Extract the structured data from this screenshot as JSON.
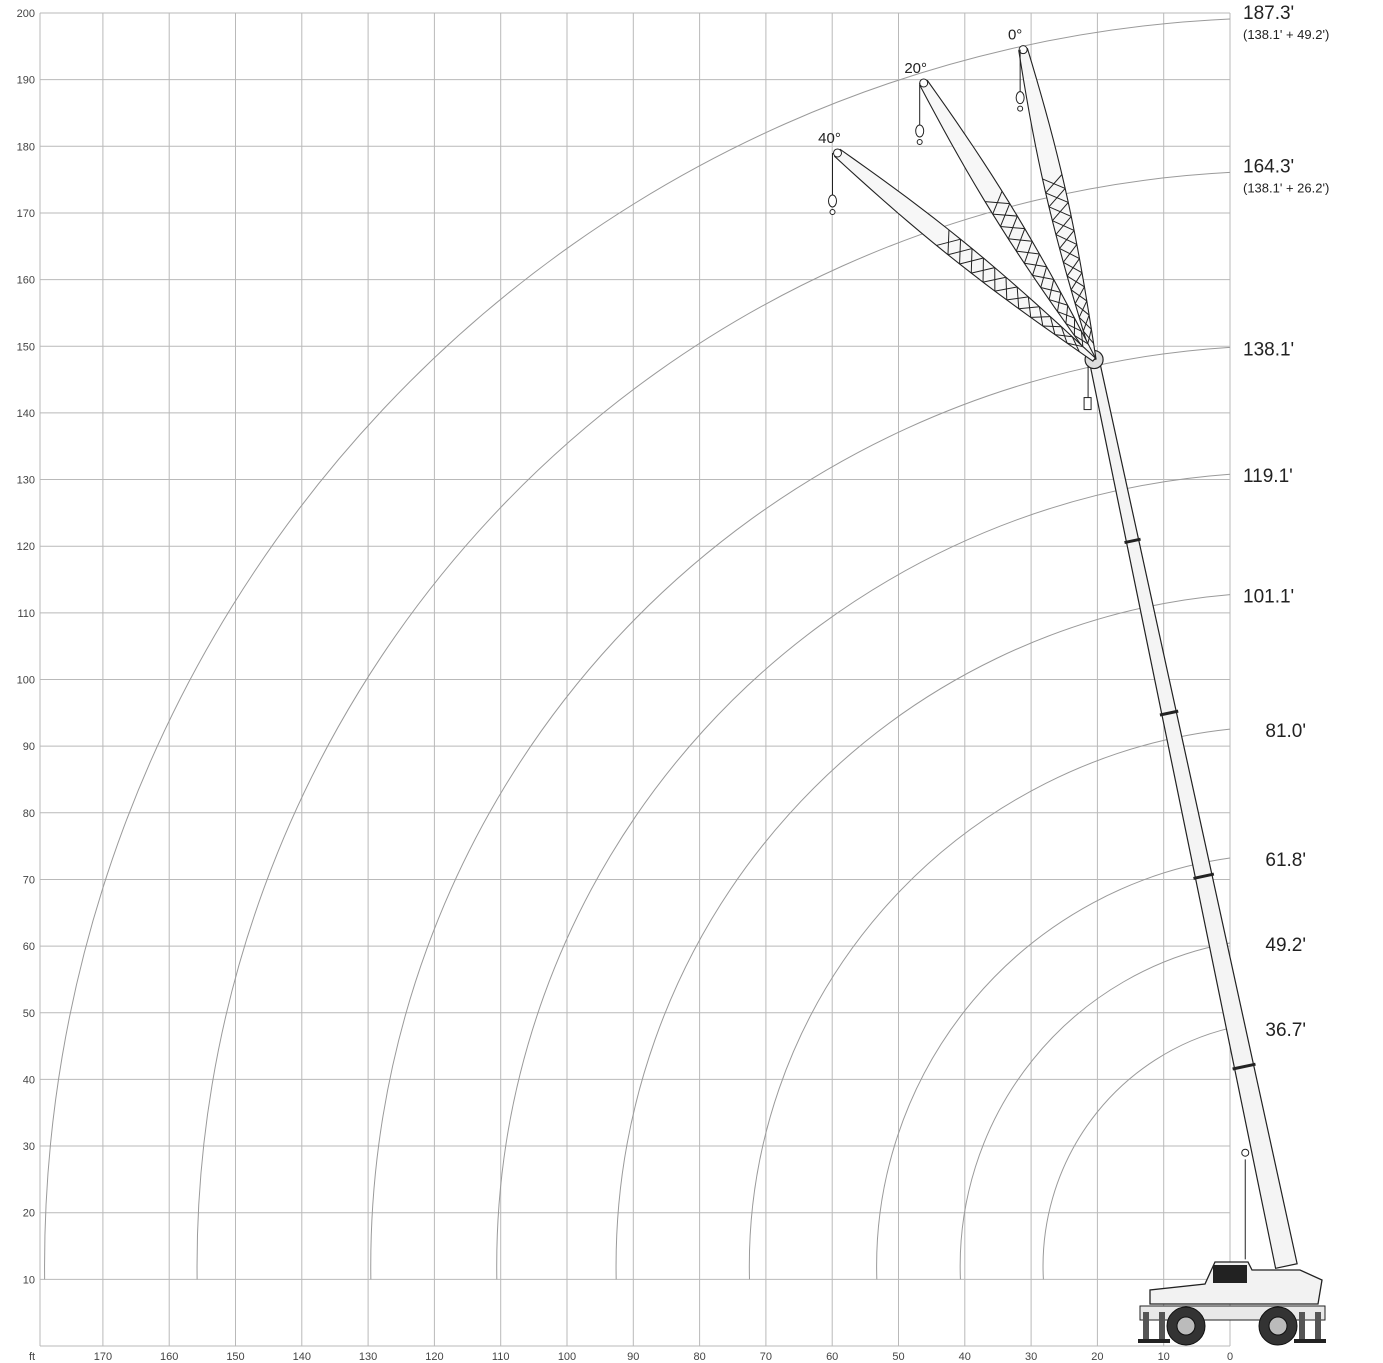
{
  "chart_data": {
    "type": "crane-range-diagram",
    "x_axis": {
      "unit_label": "ft",
      "ticks": [
        170,
        160,
        150,
        140,
        130,
        120,
        110,
        100,
        90,
        80,
        70,
        60,
        50,
        40,
        30,
        20,
        10,
        0
      ],
      "range": [
        180,
        -14
      ]
    },
    "y_axis": {
      "ticks": [
        200,
        190,
        180,
        170,
        160,
        150,
        140,
        130,
        120,
        110,
        100,
        90,
        80,
        70,
        60,
        50,
        40,
        30,
        20,
        10
      ],
      "range": [
        0,
        200
      ]
    },
    "grid": true,
    "boom_length_arcs": [
      {
        "label": "187.3'",
        "sub": "(138.1' + 49.2')",
        "radius": 187.3
      },
      {
        "label": "164.3'",
        "sub": "(138.1' + 26.2')",
        "radius": 164.3
      },
      {
        "label": "138.1'",
        "radius": 138.1
      },
      {
        "label": "119.1'",
        "radius": 119.1
      },
      {
        "label": "101.1'",
        "radius": 101.1
      },
      {
        "label": "81.0'",
        "radius": 81.0
      },
      {
        "label": "61.8'",
        "radius": 61.8
      },
      {
        "label": "49.2'",
        "radius": 49.2
      },
      {
        "label": "36.7'",
        "radius": 36.7
      }
    ],
    "jib_offsets": [
      {
        "label": "0°",
        "tip": [
          31.2,
          194.5
        ]
      },
      {
        "label": "20°",
        "tip": [
          46.2,
          189.5
        ]
      },
      {
        "label": "40°",
        "tip": [
          59.2,
          179.0
        ]
      }
    ],
    "main_boom": {
      "foot": [
        -8.5,
        12
      ],
      "head": [
        20.5,
        148
      ]
    }
  }
}
